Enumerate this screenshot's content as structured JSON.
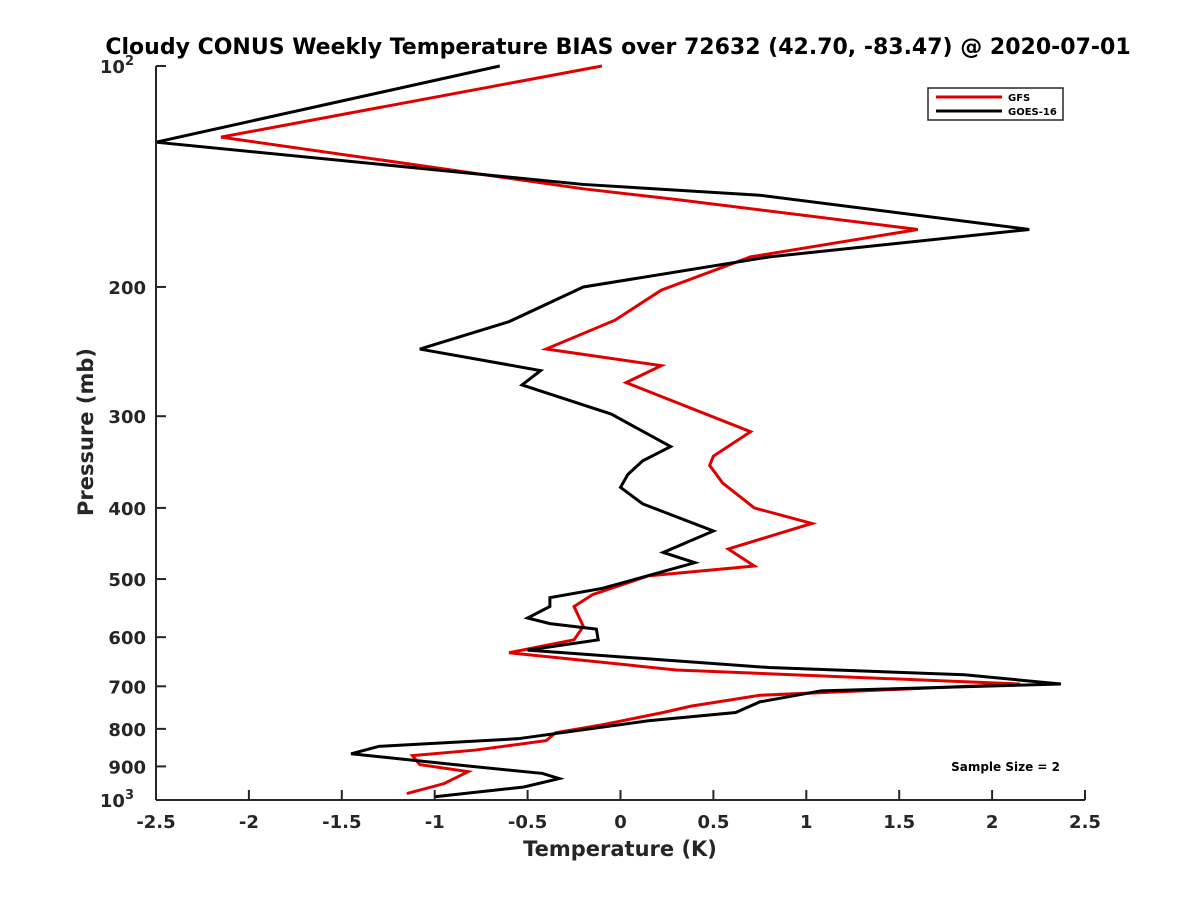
{
  "chart_data": {
    "type": "line",
    "title": "Cloudy CONUS Weekly Temperature BIAS over 72632 (42.70, -83.47) @ 2020-07-01",
    "xlabel": "Temperature (K)",
    "ylabel": "Pressure (mb)",
    "xlim": [
      -2.5,
      2.5
    ],
    "ylim": [
      100,
      1000
    ],
    "yscale": "log",
    "yreversed": true,
    "grid": false,
    "legend_position": "top-right",
    "x_ticks": [
      "-2.5",
      "-2",
      "-1.5",
      "-1",
      "-0.5",
      "0",
      "0.5",
      "1",
      "1.5",
      "2",
      "2.5"
    ],
    "x_tick_values": [
      -2.5,
      -2,
      -1.5,
      -1,
      -0.5,
      0,
      0.5,
      1,
      1.5,
      2,
      2.5
    ],
    "y_ticks": [
      {
        "value": 100,
        "base": "10",
        "exp": "2"
      },
      {
        "value": 200,
        "base": "200",
        "exp": ""
      },
      {
        "value": 300,
        "base": "300",
        "exp": ""
      },
      {
        "value": 400,
        "base": "400",
        "exp": ""
      },
      {
        "value": 500,
        "base": "500",
        "exp": ""
      },
      {
        "value": 600,
        "base": "600",
        "exp": ""
      },
      {
        "value": 700,
        "base": "700",
        "exp": ""
      },
      {
        "value": 800,
        "base": "800",
        "exp": ""
      },
      {
        "value": 900,
        "base": "900",
        "exp": ""
      },
      {
        "value": 1000,
        "base": "10",
        "exp": "3"
      }
    ],
    "annotation": "Sample Size = 2",
    "series": [
      {
        "name": "GFS",
        "color": "#e00000",
        "points": [
          [
            -0.1,
            100
          ],
          [
            -2.15,
            125
          ],
          [
            -0.2,
            147
          ],
          [
            0.3,
            152
          ],
          [
            1.6,
            167
          ],
          [
            0.7,
            182
          ],
          [
            0.22,
            202
          ],
          [
            -0.03,
            222
          ],
          [
            -0.4,
            243
          ],
          [
            0.22,
            256
          ],
          [
            0.03,
            270
          ],
          [
            0.7,
            315
          ],
          [
            0.5,
            340
          ],
          [
            0.48,
            350
          ],
          [
            0.55,
            370
          ],
          [
            0.72,
            400
          ],
          [
            1.03,
            420
          ],
          [
            0.58,
            455
          ],
          [
            0.72,
            480
          ],
          [
            0.15,
            495
          ],
          [
            -0.15,
            525
          ],
          [
            -0.25,
            545
          ],
          [
            -0.2,
            580
          ],
          [
            -0.25,
            605
          ],
          [
            -0.6,
            630
          ],
          [
            0.3,
            665
          ],
          [
            2.15,
            695
          ],
          [
            0.75,
            720
          ],
          [
            0.38,
            745
          ],
          [
            0.23,
            760
          ],
          [
            -0.1,
            790
          ],
          [
            -0.35,
            810
          ],
          [
            -0.4,
            830
          ],
          [
            -0.78,
            855
          ],
          [
            -1.12,
            870
          ],
          [
            -1.08,
            895
          ],
          [
            -0.82,
            915
          ],
          [
            -0.95,
            950
          ],
          [
            -1.15,
            980
          ]
        ]
      },
      {
        "name": "GOES-16",
        "color": "#000000",
        "points": [
          [
            -0.65,
            100
          ],
          [
            -2.5,
            127
          ],
          [
            -0.2,
            145
          ],
          [
            0.75,
            150
          ],
          [
            2.2,
            167
          ],
          [
            0.8,
            182
          ],
          [
            -0.2,
            200
          ],
          [
            -0.6,
            223
          ],
          [
            -1.08,
            243
          ],
          [
            -0.43,
            260
          ],
          [
            -0.53,
            272
          ],
          [
            -0.05,
            298
          ],
          [
            0.27,
            330
          ],
          [
            0.12,
            345
          ],
          [
            0.04,
            360
          ],
          [
            0.0,
            375
          ],
          [
            0.12,
            395
          ],
          [
            0.5,
            430
          ],
          [
            0.23,
            460
          ],
          [
            0.4,
            475
          ],
          [
            -0.1,
            515
          ],
          [
            -0.38,
            530
          ],
          [
            -0.38,
            545
          ],
          [
            -0.5,
            565
          ],
          [
            -0.38,
            575
          ],
          [
            -0.13,
            585
          ],
          [
            -0.12,
            605
          ],
          [
            -0.5,
            625
          ],
          [
            0.8,
            660
          ],
          [
            1.85,
            675
          ],
          [
            2.37,
            695
          ],
          [
            1.08,
            710
          ],
          [
            0.75,
            735
          ],
          [
            0.62,
            760
          ],
          [
            0.15,
            780
          ],
          [
            -0.55,
            825
          ],
          [
            -1.3,
            845
          ],
          [
            -1.45,
            865
          ],
          [
            -0.8,
            900
          ],
          [
            -0.42,
            920
          ],
          [
            -0.33,
            935
          ],
          [
            -0.52,
            960
          ],
          [
            -1.0,
            990
          ]
        ]
      }
    ]
  }
}
